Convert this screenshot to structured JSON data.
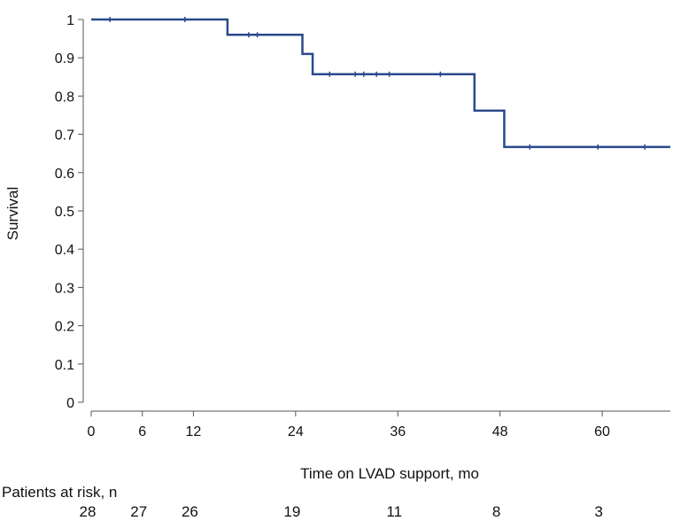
{
  "chart_data": {
    "type": "line",
    "title": "",
    "xlabel": "Time on LVAD support, mo",
    "ylabel": "Survival",
    "xlim": [
      0,
      68
    ],
    "ylim": [
      0,
      1
    ],
    "x_ticks": [
      0,
      6,
      12,
      24,
      36,
      48,
      60
    ],
    "y_ticks": [
      0,
      0.1,
      0.2,
      0.3,
      0.4,
      0.5,
      0.6,
      0.7,
      0.8,
      0.9,
      1
    ],
    "y_tick_labels": [
      "0",
      "0.1",
      "0.2",
      "0.3",
      "0.4",
      "0.5",
      "0.6",
      "0.7",
      "0.8",
      "0.9",
      "1"
    ],
    "grid": false,
    "line_color": "#2a4a8a",
    "series": [
      {
        "step": "post",
        "x": [
          0,
          16,
          24.8,
          26,
          45,
          48.5,
          68
        ],
        "y": [
          1.0,
          0.96,
          0.91,
          0.857,
          0.762,
          0.667,
          0.667
        ]
      }
    ],
    "censor_marks": [
      {
        "x": 2.2,
        "y": 1.0
      },
      {
        "x": 11,
        "y": 1.0
      },
      {
        "x": 18.5,
        "y": 0.96
      },
      {
        "x": 19.5,
        "y": 0.96
      },
      {
        "x": 28,
        "y": 0.857
      },
      {
        "x": 31,
        "y": 0.857
      },
      {
        "x": 32,
        "y": 0.857
      },
      {
        "x": 33.5,
        "y": 0.857
      },
      {
        "x": 35,
        "y": 0.857
      },
      {
        "x": 41,
        "y": 0.857
      },
      {
        "x": 51.5,
        "y": 0.667
      },
      {
        "x": 59.5,
        "y": 0.667
      },
      {
        "x": 65,
        "y": 0.667
      }
    ],
    "at_risk": {
      "label": "Patients at risk, n",
      "times": [
        0,
        6,
        12,
        24,
        36,
        48,
        60
      ],
      "counts": [
        "28",
        "27",
        "26",
        "19",
        "11",
        "8",
        "3"
      ]
    }
  }
}
